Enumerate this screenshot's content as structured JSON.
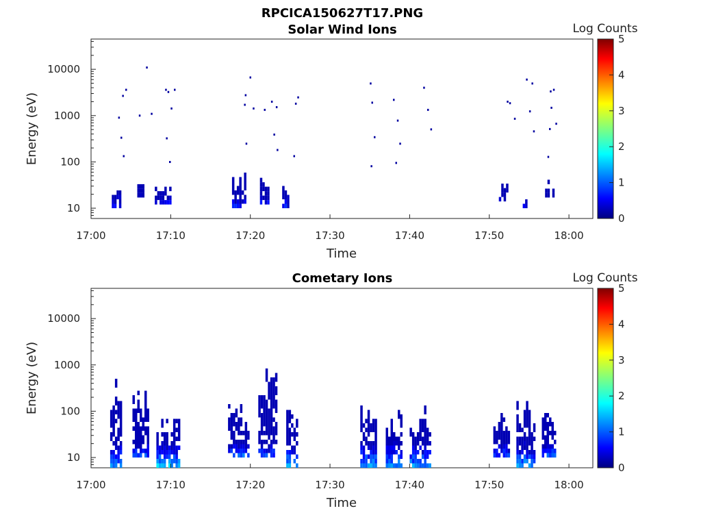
{
  "figure_title": "RPCICA150627T17.PNG",
  "chart_data": [
    {
      "type": "heatmap",
      "title": "Solar Wind Ions",
      "xlabel": "Time",
      "ylabel": "Energy (eV)",
      "x_ticks": [
        "17:00",
        "17:10",
        "17:20",
        "17:30",
        "17:40",
        "17:50",
        "18:00"
      ],
      "x_range_minutes": [
        0,
        63
      ],
      "y_scale": "log",
      "y_range": [
        6,
        45000
      ],
      "y_ticks": [
        10,
        100,
        1000,
        10000
      ],
      "y_tick_labels": [
        "10",
        "100",
        "1000",
        "10000"
      ],
      "colorbar": {
        "label": "Log Counts",
        "range": [
          0,
          5
        ],
        "ticks": [
          "0",
          "1",
          "2",
          "3",
          "4",
          "5"
        ],
        "colormap": "jet"
      },
      "bursts": [
        {
          "t_start": 2.6,
          "t_end": 3.6,
          "e_low": 10,
          "e_high": 35,
          "intensity": 0.2
        },
        {
          "t_start": 5.5,
          "t_end": 6.6,
          "e_low": 17,
          "e_high": 42,
          "intensity": 0.25
        },
        {
          "t_start": 8.0,
          "t_end": 10.0,
          "e_low": 12,
          "e_high": 42,
          "intensity": 0.25
        },
        {
          "t_start": 17.7,
          "t_end": 19.5,
          "e_low": 10,
          "e_high": 70,
          "intensity": 0.25
        },
        {
          "t_start": 21.2,
          "t_end": 22.2,
          "e_low": 12,
          "e_high": 55,
          "intensity": 0.25
        },
        {
          "t_start": 24.0,
          "t_end": 24.8,
          "e_low": 10,
          "e_high": 38,
          "intensity": 0.25
        },
        {
          "t_start": 51.2,
          "t_end": 52.2,
          "e_low": 14,
          "e_high": 40,
          "intensity": 0.15
        },
        {
          "t_start": 54.2,
          "t_end": 54.8,
          "e_low": 10,
          "e_high": 25,
          "intensity": 0.15
        },
        {
          "t_start": 57.0,
          "t_end": 58.0,
          "e_low": 17,
          "e_high": 45,
          "intensity": 0.3
        }
      ],
      "points": [
        {
          "t": 6.9,
          "e": 11500
        },
        {
          "t": 3.4,
          "e": 950
        },
        {
          "t": 3.9,
          "e": 2800
        },
        {
          "t": 4.3,
          "e": 3800
        },
        {
          "t": 3.7,
          "e": 350
        },
        {
          "t": 4.0,
          "e": 140
        },
        {
          "t": 6.0,
          "e": 1050
        },
        {
          "t": 7.5,
          "e": 1150
        },
        {
          "t": 9.3,
          "e": 3800
        },
        {
          "t": 9.6,
          "e": 3400
        },
        {
          "t": 10.4,
          "e": 3800
        },
        {
          "t": 10.0,
          "e": 1500
        },
        {
          "t": 9.4,
          "e": 340
        },
        {
          "t": 9.8,
          "e": 105
        },
        {
          "t": 19.9,
          "e": 7000
        },
        {
          "t": 19.3,
          "e": 2900
        },
        {
          "t": 19.2,
          "e": 1800
        },
        {
          "t": 20.3,
          "e": 1500
        },
        {
          "t": 21.7,
          "e": 1400
        },
        {
          "t": 22.6,
          "e": 2100
        },
        {
          "t": 23.2,
          "e": 1600
        },
        {
          "t": 25.9,
          "e": 2600
        },
        {
          "t": 25.6,
          "e": 1900
        },
        {
          "t": 19.4,
          "e": 260
        },
        {
          "t": 22.9,
          "e": 410
        },
        {
          "t": 23.3,
          "e": 190
        },
        {
          "t": 25.4,
          "e": 140
        },
        {
          "t": 35.0,
          "e": 5200
        },
        {
          "t": 35.2,
          "e": 2000
        },
        {
          "t": 35.5,
          "e": 360
        },
        {
          "t": 35.1,
          "e": 85
        },
        {
          "t": 37.9,
          "e": 2300
        },
        {
          "t": 38.4,
          "e": 820
        },
        {
          "t": 41.7,
          "e": 4200
        },
        {
          "t": 42.2,
          "e": 1400
        },
        {
          "t": 42.6,
          "e": 530
        },
        {
          "t": 38.7,
          "e": 260
        },
        {
          "t": 38.2,
          "e": 100
        },
        {
          "t": 52.2,
          "e": 2100
        },
        {
          "t": 52.5,
          "e": 1950
        },
        {
          "t": 54.6,
          "e": 6300
        },
        {
          "t": 55.3,
          "e": 5200
        },
        {
          "t": 55.0,
          "e": 1300
        },
        {
          "t": 55.5,
          "e": 480
        },
        {
          "t": 57.6,
          "e": 3500
        },
        {
          "t": 58.0,
          "e": 3800
        },
        {
          "t": 57.7,
          "e": 1550
        },
        {
          "t": 58.3,
          "e": 700
        },
        {
          "t": 57.5,
          "e": 540
        },
        {
          "t": 57.3,
          "e": 135
        },
        {
          "t": 53.1,
          "e": 900
        }
      ]
    },
    {
      "type": "heatmap",
      "title": "Cometary Ions",
      "xlabel": "Time",
      "ylabel": "Energy (eV)",
      "x_ticks": [
        "17:00",
        "17:10",
        "17:20",
        "17:30",
        "17:40",
        "17:50",
        "18:00"
      ],
      "x_range_minutes": [
        0,
        63
      ],
      "y_scale": "log",
      "y_range": [
        6,
        45000
      ],
      "y_ticks": [
        10,
        100,
        1000,
        10000
      ],
      "y_tick_labels": [
        "10",
        "100",
        "1000",
        "10000"
      ],
      "colorbar": {
        "label": "Log Counts",
        "range": [
          0,
          5
        ],
        "ticks": [
          "0",
          "1",
          "2",
          "3",
          "4",
          "5"
        ],
        "colormap": "jet"
      },
      "bursts": [
        {
          "t_start": 2.4,
          "t_end": 3.8,
          "e_low": 6,
          "e_high": 600,
          "intensity": 0.3
        },
        {
          "t_start": 5.2,
          "t_end": 7.2,
          "e_low": 10,
          "e_high": 300,
          "intensity": 0.35
        },
        {
          "t_start": 8.2,
          "t_end": 11.0,
          "e_low": 6,
          "e_high": 80,
          "intensity": 0.35
        },
        {
          "t_start": 17.2,
          "t_end": 19.7,
          "e_low": 10,
          "e_high": 170,
          "intensity": 0.4
        },
        {
          "t_start": 21.0,
          "t_end": 23.4,
          "e_low": 10,
          "e_high": 1100,
          "intensity": 0.35
        },
        {
          "t_start": 24.5,
          "t_end": 26.0,
          "e_low": 6,
          "e_high": 150,
          "intensity": 0.35
        },
        {
          "t_start": 33.8,
          "t_end": 35.8,
          "e_low": 6,
          "e_high": 250,
          "intensity": 0.3
        },
        {
          "t_start": 37.0,
          "t_end": 39.0,
          "e_low": 6,
          "e_high": 110,
          "intensity": 0.3
        },
        {
          "t_start": 40.0,
          "t_end": 42.6,
          "e_low": 6,
          "e_high": 150,
          "intensity": 0.3
        },
        {
          "t_start": 50.5,
          "t_end": 52.4,
          "e_low": 10,
          "e_high": 120,
          "intensity": 0.35
        },
        {
          "t_start": 53.4,
          "t_end": 55.8,
          "e_low": 6,
          "e_high": 250,
          "intensity": 0.3
        },
        {
          "t_start": 56.6,
          "t_end": 58.2,
          "e_low": 10,
          "e_high": 120,
          "intensity": 0.4
        }
      ],
      "points": []
    }
  ]
}
